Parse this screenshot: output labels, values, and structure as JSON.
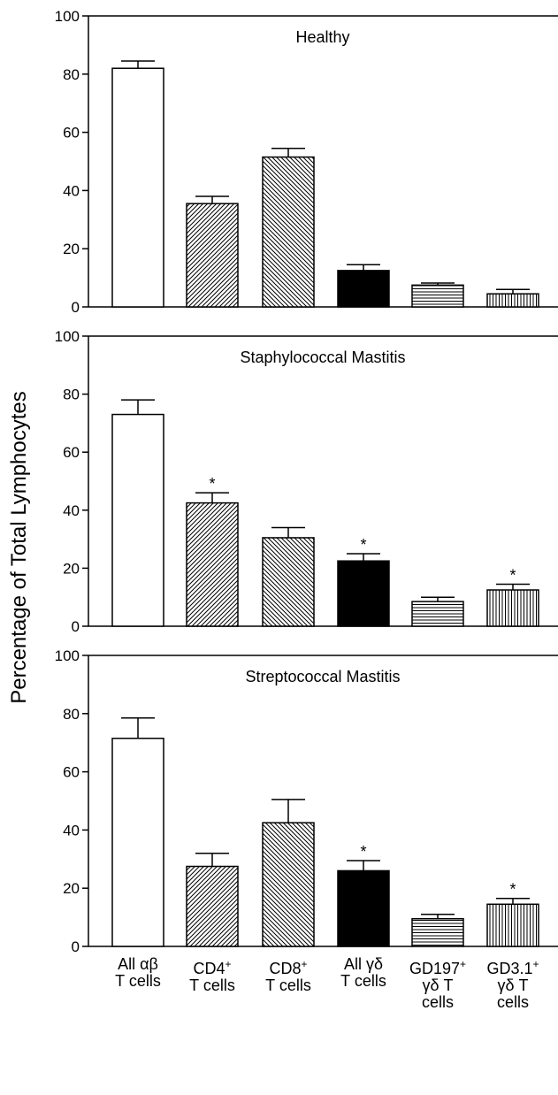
{
  "figure": {
    "ylabel": "Percentage of Total Lymphocytes"
  },
  "categories": [
    {
      "line1": "All αβ",
      "line1_sup": "",
      "line2": "T cells",
      "line3": ""
    },
    {
      "line1": "CD4",
      "line1_sup": "+",
      "line2": "T cells",
      "line3": ""
    },
    {
      "line1": "CD8",
      "line1_sup": "+",
      "line2": "T cells",
      "line3": ""
    },
    {
      "line1": "All γδ",
      "line1_sup": "",
      "line2": "T cells",
      "line3": ""
    },
    {
      "line1": "GD197",
      "line1_sup": "+",
      "line2": "γδ T",
      "line3": "cells"
    },
    {
      "line1": "GD3.1",
      "line1_sup": "+",
      "line2": "γδ T",
      "line3": "cells"
    }
  ],
  "chart_data": [
    {
      "type": "bar",
      "title": "Healthy",
      "categories": [
        "All αβ T cells",
        "CD4+ T cells",
        "CD8+ T cells",
        "All γδ T cells",
        "GD197+ γδ T cells",
        "GD3.1+ γδ T cells"
      ],
      "values": [
        82,
        35.5,
        51.5,
        12.5,
        7.5,
        4.5
      ],
      "error": [
        2.5,
        2.5,
        3,
        2,
        0.7,
        1.5
      ],
      "significant": [
        false,
        false,
        false,
        false,
        false,
        false
      ],
      "ylim": [
        0,
        100
      ],
      "yticks": [
        0,
        20,
        40,
        60,
        80,
        100
      ]
    },
    {
      "type": "bar",
      "title": "Staphylococcal Mastitis",
      "categories": [
        "All αβ T cells",
        "CD4+ T cells",
        "CD8+ T cells",
        "All γδ T cells",
        "GD197+ γδ T cells",
        "GD3.1+ γδ T cells"
      ],
      "values": [
        73,
        42.5,
        30.5,
        22.5,
        8.5,
        12.5
      ],
      "error": [
        5,
        3.5,
        3.5,
        2.5,
        1.5,
        2
      ],
      "significant": [
        false,
        true,
        false,
        true,
        false,
        true
      ],
      "significance_marker": "*",
      "ylim": [
        0,
        100
      ],
      "yticks": [
        0,
        20,
        40,
        60,
        80,
        100
      ]
    },
    {
      "type": "bar",
      "title": "Streptococcal Mastitis",
      "categories": [
        "All αβ T cells",
        "CD4+ T cells",
        "CD8+ T cells",
        "All γδ T cells",
        "GD197+ γδ T cells",
        "GD3.1+ γδ T cells"
      ],
      "values": [
        71.5,
        27.5,
        42.5,
        26,
        9.5,
        14.5
      ],
      "error": [
        7,
        4.5,
        8,
        3.5,
        1.5,
        2
      ],
      "significant": [
        false,
        false,
        false,
        true,
        false,
        true
      ],
      "significance_marker": "*",
      "ylim": [
        0,
        100
      ],
      "yticks": [
        0,
        20,
        40,
        60,
        80,
        100
      ]
    }
  ],
  "bar_fills": [
    "white",
    "diag-up-right",
    "diag-down-right",
    "solid-black",
    "horizontal-lines",
    "vertical-lines"
  ]
}
